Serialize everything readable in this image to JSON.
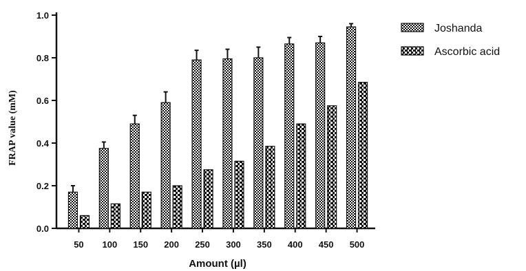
{
  "chart_data": {
    "type": "bar",
    "categories": [
      "50",
      "100",
      "150",
      "200",
      "250",
      "300",
      "350",
      "400",
      "450",
      "500"
    ],
    "series": [
      {
        "name": "Joshanda",
        "values": [
          0.17,
          0.375,
          0.49,
          0.59,
          0.79,
          0.795,
          0.8,
          0.865,
          0.87,
          0.945
        ],
        "errors": [
          0.03,
          0.03,
          0.04,
          0.05,
          0.045,
          0.045,
          0.05,
          0.03,
          0.03,
          0.015
        ],
        "pattern": "checker"
      },
      {
        "name": "Ascorbic acid",
        "values": [
          0.06,
          0.115,
          0.17,
          0.2,
          0.275,
          0.315,
          0.385,
          0.49,
          0.575,
          0.685
        ],
        "pattern": "dashes"
      }
    ],
    "xlabel": "Amount (µl)",
    "ylabel": "FRAP value (mM)",
    "ylim": [
      0,
      1.0
    ],
    "yticks": [
      "0.0",
      "0.2",
      "0.4",
      "0.6",
      "0.8",
      "1.0"
    ],
    "grid": false,
    "legend": "top-right",
    "colors": {
      "ink": "#111111",
      "background": "#ffffff"
    }
  }
}
